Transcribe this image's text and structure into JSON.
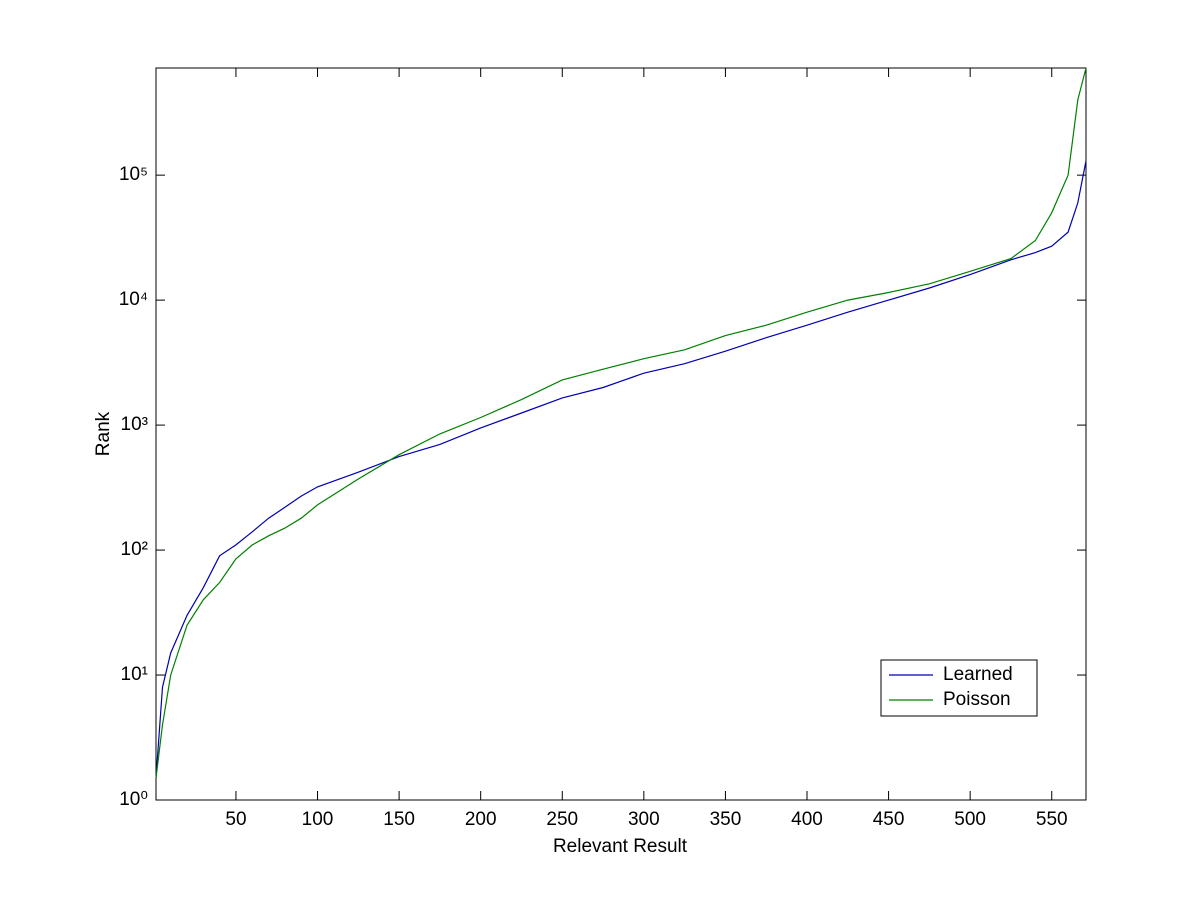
{
  "chart_data": {
    "type": "line",
    "xlabel": "Relevant Result",
    "ylabel": "Rank",
    "x": [
      1,
      5,
      10,
      20,
      30,
      40,
      50,
      60,
      70,
      80,
      90,
      100,
      125,
      150,
      175,
      200,
      225,
      250,
      275,
      300,
      325,
      350,
      375,
      400,
      425,
      450,
      475,
      500,
      525,
      540,
      550,
      560,
      566,
      571
    ],
    "series": [
      {
        "name": "Learned",
        "color": "#0000b0",
        "values": [
          1.5,
          8,
          15,
          30,
          50,
          90,
          110,
          140,
          180,
          220,
          270,
          320,
          420,
          560,
          700,
          950,
          1250,
          1650,
          2000,
          2600,
          3100,
          3900,
          5000,
          6300,
          8000,
          10000,
          12500,
          16000,
          21000,
          24000,
          27000,
          35000,
          60000,
          130000
        ]
      },
      {
        "name": "Poisson",
        "color": "#008000",
        "values": [
          1.5,
          4,
          10,
          25,
          40,
          55,
          85,
          110,
          130,
          150,
          180,
          230,
          370,
          580,
          850,
          1150,
          1600,
          2300,
          2800,
          3400,
          4000,
          5200,
          6300,
          8000,
          10000,
          11500,
          13500,
          17000,
          21500,
          30000,
          50000,
          100000,
          400000,
          720000
        ]
      }
    ],
    "xlim": [
      1,
      571
    ],
    "xticks": [
      50,
      100,
      150,
      200,
      250,
      300,
      350,
      400,
      450,
      500,
      550
    ],
    "ylim": [
      1,
      720000
    ],
    "yscale": "log",
    "yticks": [
      {
        "value": 1,
        "label": "10⁰"
      },
      {
        "value": 10,
        "label": "10¹"
      },
      {
        "value": 100,
        "label": "10²"
      },
      {
        "value": 1000,
        "label": "10³"
      },
      {
        "value": 10000,
        "label": "10⁴"
      },
      {
        "value": 100000,
        "label": "10⁵"
      }
    ],
    "grid": false,
    "legend": "lower right"
  }
}
